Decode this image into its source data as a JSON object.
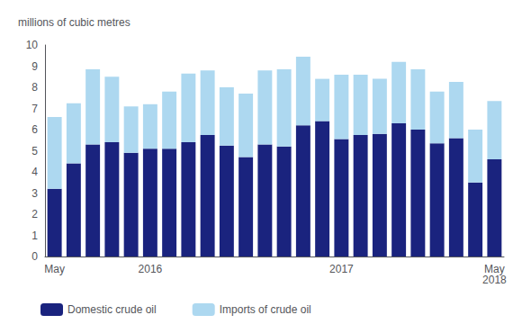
{
  "chart_data": {
    "type": "bar",
    "ylabel": "millions of cubic metres",
    "categories": [
      "May",
      null,
      null,
      null,
      null,
      "2016",
      null,
      null,
      null,
      null,
      null,
      null,
      null,
      null,
      null,
      "2017",
      null,
      null,
      null,
      null,
      null,
      null,
      null,
      "May\n2018"
    ],
    "series": [
      {
        "name": "Domestic crude oil",
        "color": "#1a237e",
        "values": [
          3.2,
          4.4,
          5.3,
          5.4,
          4.9,
          5.1,
          5.1,
          5.4,
          5.75,
          5.25,
          4.7,
          5.3,
          5.2,
          6.2,
          6.4,
          5.55,
          5.75,
          5.8,
          6.3,
          6.0,
          5.35,
          5.6,
          3.5,
          4.6
        ]
      },
      {
        "name": "Imports of crude oil",
        "color": "#add8f0",
        "values": [
          3.4,
          2.85,
          3.55,
          3.1,
          2.2,
          2.1,
          2.7,
          3.25,
          3.05,
          2.75,
          3.0,
          3.5,
          3.65,
          3.25,
          2.0,
          3.05,
          2.85,
          2.6,
          2.9,
          2.85,
          2.45,
          2.65,
          2.5,
          2.75
        ]
      }
    ],
    "stacked": true,
    "ylim": [
      0,
      10
    ],
    "yticks": [
      0,
      1,
      2,
      3,
      4,
      5,
      6,
      7,
      8,
      9,
      10
    ],
    "grid": false,
    "legend": "lower left"
  }
}
